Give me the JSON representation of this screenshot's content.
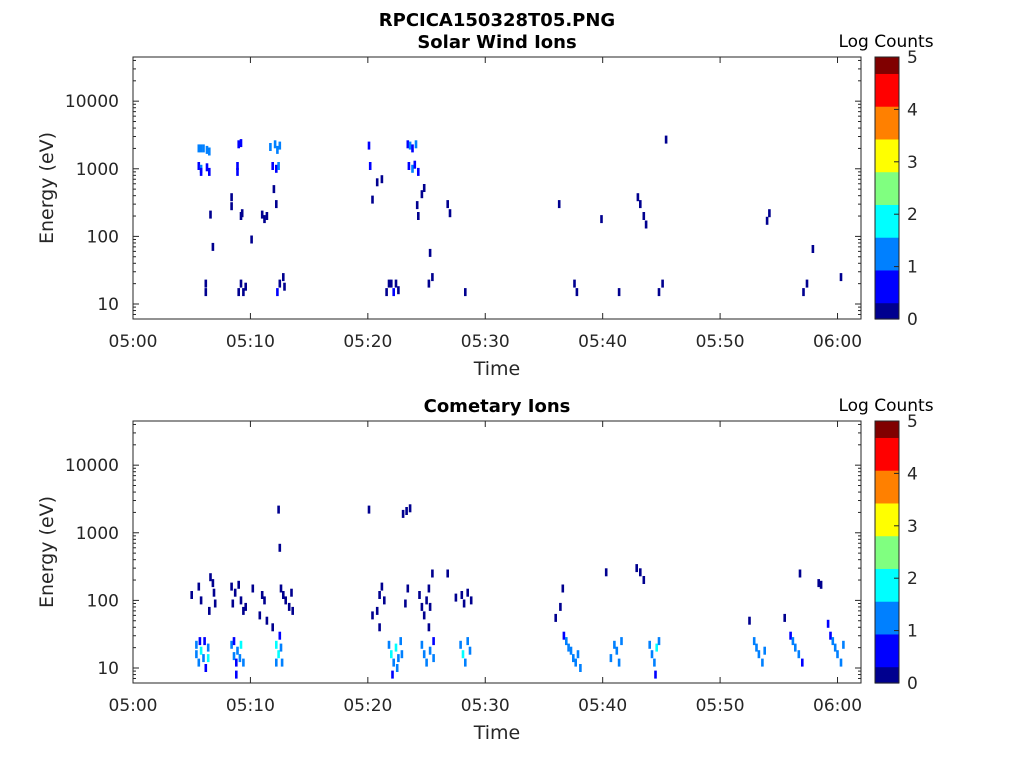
{
  "figure": {
    "title": "RPCICA150328T05.PNG"
  },
  "colormap": [
    "#00008f",
    "#0000ff",
    "#0080ff",
    "#00ffff",
    "#80ff80",
    "#ffff00",
    "#ff8000",
    "#ff0000",
    "#800000"
  ],
  "chart_data": [
    {
      "type": "heatmap",
      "title": "Solar Wind Ions",
      "xlabel": "Time",
      "ylabel": "Energy (eV)",
      "xticks": [
        "05:00",
        "05:10",
        "05:20",
        "05:30",
        "05:40",
        "05:50",
        "06:00"
      ],
      "yticks": [
        "10",
        "100",
        "1000",
        "10000"
      ],
      "yscale": "log",
      "xlim_minutes": [
        0,
        62
      ],
      "ylim": [
        6,
        45000
      ],
      "colorbar": {
        "label": "Log Counts",
        "ticks": [
          "0",
          "1",
          "2",
          "3",
          "4",
          "5"
        ],
        "range": [
          0,
          5
        ]
      },
      "cells": [
        [
          5.6,
          2000,
          1.2
        ],
        [
          5.8,
          2000,
          1.0
        ],
        [
          6.0,
          2000,
          1.1
        ],
        [
          6.3,
          1900,
          1.2
        ],
        [
          6.5,
          1800,
          1.0
        ],
        [
          5.6,
          1100,
          0.8
        ],
        [
          5.8,
          1000,
          1.0
        ],
        [
          5.8,
          900,
          0.6
        ],
        [
          6.3,
          1050,
          0.7
        ],
        [
          6.5,
          900,
          0.5
        ],
        [
          6.2,
          15,
          0.3
        ],
        [
          6.2,
          20,
          0.2
        ],
        [
          6.6,
          210,
          0.3
        ],
        [
          6.8,
          70,
          0.3
        ],
        [
          8.4,
          380,
          0.2
        ],
        [
          8.4,
          280,
          0.2
        ],
        [
          9.0,
          2300,
          0.6
        ],
        [
          9.2,
          2400,
          0.8
        ],
        [
          8.9,
          1100,
          0.9
        ],
        [
          8.9,
          900,
          0.5
        ],
        [
          9.2,
          200,
          0.2
        ],
        [
          9.3,
          220,
          0.2
        ],
        [
          9.0,
          15,
          0.3
        ],
        [
          9.2,
          20,
          0.3
        ],
        [
          9.4,
          15,
          0.2
        ],
        [
          9.6,
          18,
          0.2
        ],
        [
          10.1,
          90,
          0.2
        ],
        [
          11.0,
          210,
          0.3
        ],
        [
          11.2,
          180,
          0.2
        ],
        [
          11.4,
          200,
          0.3
        ],
        [
          11.7,
          2100,
          1.0
        ],
        [
          12.1,
          2300,
          1.1
        ],
        [
          12.3,
          1900,
          1.2
        ],
        [
          12.5,
          2200,
          1.0
        ],
        [
          11.9,
          1100,
          0.9
        ],
        [
          12.2,
          1000,
          0.8
        ],
        [
          12.4,
          1100,
          1.0
        ],
        [
          12.0,
          500,
          0.2
        ],
        [
          12.2,
          300,
          0.2
        ],
        [
          12.3,
          15,
          0.4
        ],
        [
          12.5,
          20,
          0.3
        ],
        [
          12.8,
          25,
          0.2
        ],
        [
          12.9,
          18,
          0.3
        ],
        [
          20.1,
          2200,
          0.8
        ],
        [
          20.2,
          1100,
          0.9
        ],
        [
          20.4,
          350,
          0.3
        ],
        [
          20.8,
          630,
          0.2
        ],
        [
          21.2,
          700,
          0.2
        ],
        [
          21.6,
          15,
          0.3
        ],
        [
          21.8,
          20,
          0.2
        ],
        [
          22.0,
          20,
          0.3
        ],
        [
          22.2,
          15,
          0.4
        ],
        [
          22.4,
          20,
          0.3
        ],
        [
          22.6,
          16,
          0.3
        ],
        [
          23.4,
          2300,
          0.9
        ],
        [
          23.6,
          2200,
          1.1
        ],
        [
          23.8,
          2000,
          0.9
        ],
        [
          24.1,
          2300,
          1.2
        ],
        [
          23.5,
          1100,
          0.9
        ],
        [
          23.8,
          1000,
          1.0
        ],
        [
          24.0,
          1150,
          0.8
        ],
        [
          24.3,
          900,
          0.5
        ],
        [
          24.2,
          290,
          0.3
        ],
        [
          24.6,
          420,
          0.2
        ],
        [
          24.8,
          520,
          0.2
        ],
        [
          24.3,
          200,
          0.2
        ],
        [
          25.3,
          57,
          0.3
        ],
        [
          25.2,
          20,
          0.3
        ],
        [
          25.5,
          25,
          0.2
        ],
        [
          26.8,
          300,
          0.2
        ],
        [
          27.0,
          220,
          0.2
        ],
        [
          28.3,
          15,
          0.2
        ],
        [
          36.3,
          300,
          0.2
        ],
        [
          37.6,
          20,
          0.2
        ],
        [
          37.8,
          15,
          0.2
        ],
        [
          39.9,
          180,
          0.2
        ],
        [
          41.4,
          15,
          0.3
        ],
        [
          43.0,
          380,
          0.2
        ],
        [
          43.2,
          300,
          0.2
        ],
        [
          43.5,
          200,
          0.3
        ],
        [
          43.7,
          150,
          0.2
        ],
        [
          44.8,
          15,
          0.3
        ],
        [
          45.1,
          20,
          0.2
        ],
        [
          45.4,
          2700,
          0.2
        ],
        [
          54.2,
          220,
          0.3
        ],
        [
          54.0,
          170,
          0.2
        ],
        [
          57.1,
          15,
          0.2
        ],
        [
          57.4,
          20,
          0.2
        ],
        [
          57.9,
          65,
          0.2
        ],
        [
          60.3,
          25,
          0.2
        ]
      ]
    },
    {
      "type": "heatmap",
      "title": "Cometary Ions",
      "xlabel": "Time",
      "ylabel": "Energy (eV)",
      "xticks": [
        "05:00",
        "05:10",
        "05:20",
        "05:30",
        "05:40",
        "05:50",
        "06:00"
      ],
      "yticks": [
        "10",
        "100",
        "1000",
        "10000"
      ],
      "yscale": "log",
      "xlim_minutes": [
        0,
        62
      ],
      "ylim": [
        6,
        45000
      ],
      "colorbar": {
        "label": "Log Counts",
        "ticks": [
          "0",
          "1",
          "2",
          "3",
          "4",
          "5"
        ],
        "range": [
          0,
          5
        ]
      },
      "cells": [
        [
          5.4,
          22,
          1.2
        ],
        [
          5.4,
          16,
          1.4
        ],
        [
          5.6,
          12,
          1.0
        ],
        [
          5.7,
          25,
          0.9
        ],
        [
          5.8,
          18,
          1.8
        ],
        [
          6.0,
          14,
          1.5
        ],
        [
          6.1,
          25,
          0.8
        ],
        [
          6.2,
          10,
          0.9
        ],
        [
          6.4,
          20,
          1.3
        ],
        [
          6.4,
          14,
          1.6
        ],
        [
          5.0,
          120,
          0.2
        ],
        [
          5.6,
          160,
          0.3
        ],
        [
          6.6,
          220,
          0.3
        ],
        [
          6.8,
          180,
          0.3
        ],
        [
          6.9,
          130,
          0.2
        ],
        [
          7.0,
          90,
          0.3
        ],
        [
          5.8,
          100,
          0.2
        ],
        [
          6.5,
          70,
          0.2
        ],
        [
          8.4,
          22,
          1.0
        ],
        [
          8.6,
          15,
          1.3
        ],
        [
          8.8,
          12,
          0.8
        ],
        [
          8.6,
          25,
          0.9
        ],
        [
          8.9,
          18,
          1.4
        ],
        [
          9.1,
          14,
          1.1
        ],
        [
          9.2,
          22,
          1.6
        ],
        [
          9.4,
          12,
          1.0
        ],
        [
          8.8,
          8,
          0.6
        ],
        [
          8.4,
          160,
          0.3
        ],
        [
          8.7,
          130,
          0.2
        ],
        [
          9.0,
          170,
          0.2
        ],
        [
          9.2,
          100,
          0.3
        ],
        [
          9.4,
          70,
          0.3
        ],
        [
          9.6,
          80,
          0.2
        ],
        [
          10.2,
          150,
          0.3
        ],
        [
          8.5,
          90,
          0.2
        ],
        [
          10.8,
          60,
          0.2
        ],
        [
          11.0,
          120,
          0.2
        ],
        [
          11.2,
          100,
          0.3
        ],
        [
          11.4,
          50,
          0.2
        ],
        [
          11.9,
          40,
          0.3
        ],
        [
          12.2,
          22,
          1.8
        ],
        [
          12.4,
          16,
          2.0
        ],
        [
          12.6,
          20,
          1.5
        ],
        [
          12.7,
          12,
          1.2
        ],
        [
          12.2,
          12,
          1.0
        ],
        [
          12.5,
          30,
          0.8
        ],
        [
          12.6,
          150,
          0.3
        ],
        [
          12.8,
          120,
          0.2
        ],
        [
          13.0,
          100,
          0.2
        ],
        [
          13.3,
          80,
          0.3
        ],
        [
          13.5,
          130,
          0.2
        ],
        [
          13.6,
          70,
          0.2
        ],
        [
          12.5,
          600,
          0.3
        ],
        [
          12.4,
          2200,
          0.2
        ],
        [
          20.1,
          2200,
          0.2
        ],
        [
          20.4,
          60,
          0.2
        ],
        [
          20.8,
          70,
          0.3
        ],
        [
          21.0,
          120,
          0.2
        ],
        [
          21.2,
          160,
          0.3
        ],
        [
          21.4,
          100,
          0.2
        ],
        [
          21.0,
          40,
          0.2
        ],
        [
          21.8,
          22,
          1.3
        ],
        [
          22.0,
          16,
          1.6
        ],
        [
          22.2,
          12,
          1.4
        ],
        [
          22.4,
          20,
          1.9
        ],
        [
          22.6,
          14,
          1.5
        ],
        [
          22.8,
          25,
          1.1
        ],
        [
          22.1,
          8,
          0.8
        ],
        [
          22.5,
          10,
          1.2
        ],
        [
          22.9,
          16,
          1.0
        ],
        [
          23.2,
          90,
          0.2
        ],
        [
          23.4,
          150,
          0.2
        ],
        [
          23.0,
          1900,
          0.2
        ],
        [
          23.6,
          2300,
          0.2
        ],
        [
          23.3,
          2100,
          0.2
        ],
        [
          24.4,
          120,
          0.3
        ],
        [
          24.6,
          80,
          0.2
        ],
        [
          24.8,
          60,
          0.3
        ],
        [
          25.0,
          100,
          0.2
        ],
        [
          25.2,
          150,
          0.3
        ],
        [
          25.3,
          80,
          0.2
        ],
        [
          25.5,
          250,
          0.3
        ],
        [
          25.2,
          40,
          0.2
        ],
        [
          24.6,
          22,
          1.2
        ],
        [
          24.8,
          16,
          1.4
        ],
        [
          25.0,
          12,
          1.0
        ],
        [
          25.3,
          18,
          1.3
        ],
        [
          25.6,
          14,
          1.1
        ],
        [
          25.6,
          25,
          0.9
        ],
        [
          26.8,
          250,
          0.2
        ],
        [
          27.5,
          110,
          0.2
        ],
        [
          28.0,
          120,
          0.3
        ],
        [
          28.2,
          90,
          0.2
        ],
        [
          28.5,
          130,
          0.2
        ],
        [
          28.8,
          100,
          0.2
        ],
        [
          27.9,
          22,
          1.5
        ],
        [
          28.1,
          16,
          1.8
        ],
        [
          28.3,
          12,
          1.2
        ],
        [
          28.5,
          25,
          1.3
        ],
        [
          28.7,
          18,
          1.0
        ],
        [
          36.0,
          55,
          0.2
        ],
        [
          36.4,
          80,
          0.3
        ],
        [
          36.6,
          150,
          0.2
        ],
        [
          36.7,
          30,
          0.8
        ],
        [
          36.9,
          25,
          1.0
        ],
        [
          37.1,
          20,
          1.2
        ],
        [
          37.3,
          18,
          1.0
        ],
        [
          37.5,
          14,
          1.3
        ],
        [
          37.7,
          12,
          1.5
        ],
        [
          37.9,
          16,
          1.2
        ],
        [
          38.1,
          10,
          1.0
        ],
        [
          40.3,
          260,
          0.2
        ],
        [
          40.7,
          14,
          1.2
        ],
        [
          41.0,
          22,
          1.5
        ],
        [
          41.2,
          18,
          1.3
        ],
        [
          41.4,
          12,
          1.0
        ],
        [
          41.6,
          25,
          1.1
        ],
        [
          42.9,
          300,
          0.2
        ],
        [
          43.2,
          260,
          0.2
        ],
        [
          43.5,
          200,
          0.2
        ],
        [
          44.0,
          22,
          1.4
        ],
        [
          44.2,
          16,
          1.5
        ],
        [
          44.4,
          12,
          1.2
        ],
        [
          44.6,
          20,
          1.6
        ],
        [
          44.8,
          25,
          1.0
        ],
        [
          44.5,
          8,
          0.6
        ],
        [
          52.9,
          25,
          1.0
        ],
        [
          53.1,
          20,
          1.2
        ],
        [
          53.3,
          16,
          1.4
        ],
        [
          53.6,
          12,
          1.0
        ],
        [
          53.8,
          18,
          1.1
        ],
        [
          52.5,
          50,
          0.2
        ],
        [
          55.5,
          55,
          0.3
        ],
        [
          56.0,
          30,
          0.8
        ],
        [
          56.2,
          25,
          1.0
        ],
        [
          56.4,
          20,
          1.2
        ],
        [
          56.7,
          16,
          1.1
        ],
        [
          57.0,
          12,
          0.9
        ],
        [
          56.8,
          250,
          0.2
        ],
        [
          58.4,
          180,
          0.3
        ],
        [
          58.6,
          170,
          0.2
        ],
        [
          59.2,
          45,
          0.8
        ],
        [
          59.4,
          30,
          0.9
        ],
        [
          59.6,
          25,
          1.0
        ],
        [
          59.8,
          20,
          1.4
        ],
        [
          60.0,
          16,
          1.2
        ],
        [
          60.3,
          12,
          1.0
        ],
        [
          60.5,
          22,
          1.3
        ]
      ]
    }
  ]
}
